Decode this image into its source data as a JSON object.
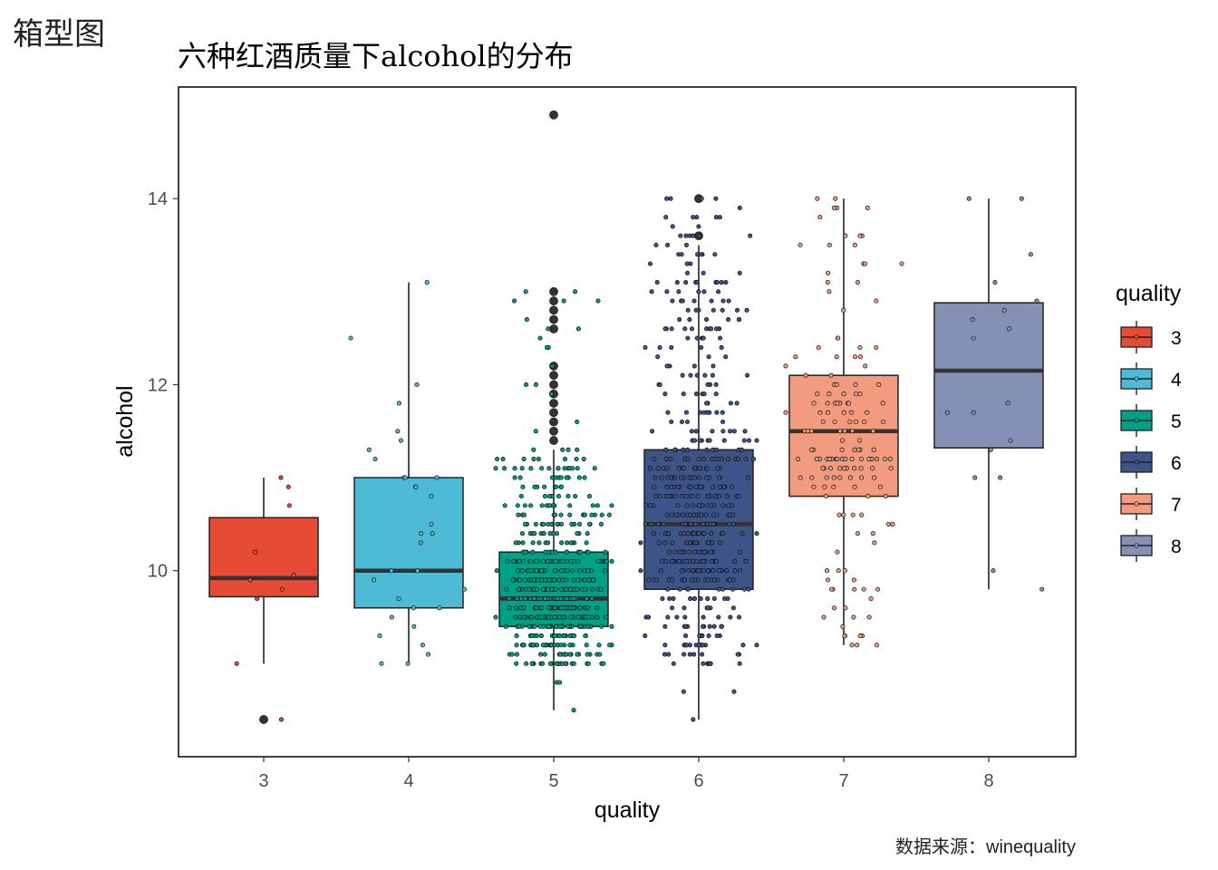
{
  "page": {
    "heading": "箱型图"
  },
  "chart_data": {
    "type": "boxplot",
    "title": "六种红酒质量下alcohol的分布",
    "xlabel": "quality",
    "ylabel": "alcohol",
    "caption": "数据来源：winequality",
    "ylim": [
      8.0,
      15.2
    ],
    "yticks": [
      10,
      12,
      14
    ],
    "grid": false,
    "legend": {
      "title": "quality",
      "position": "right"
    },
    "categories": [
      "3",
      "4",
      "5",
      "6",
      "7",
      "8"
    ],
    "colors": [
      "#E64B35",
      "#4DBBD5",
      "#00A087",
      "#3C5488",
      "#F39B7F",
      "#8491B4"
    ],
    "boxes": [
      {
        "category": "3",
        "min": 9.0,
        "q1": 9.72,
        "median": 9.92,
        "q3": 10.57,
        "max": 11.0,
        "outliers": [
          8.4
        ]
      },
      {
        "category": "4",
        "min": 9.0,
        "q1": 9.6,
        "median": 10.0,
        "q3": 11.0,
        "max": 13.1,
        "outliers": []
      },
      {
        "category": "5",
        "min": 8.5,
        "q1": 9.4,
        "median": 9.7,
        "q3": 10.2,
        "max": 11.3,
        "outliers": [
          11.4,
          11.5,
          11.6,
          11.7,
          11.8,
          11.9,
          12.0,
          12.1,
          12.2,
          12.6,
          12.7,
          12.8,
          12.9,
          13.0,
          14.9
        ]
      },
      {
        "category": "6",
        "min": 8.4,
        "q1": 9.8,
        "median": 10.5,
        "q3": 11.3,
        "max": 13.5,
        "outliers": [
          13.6,
          14.0
        ]
      },
      {
        "category": "7",
        "min": 9.2,
        "q1": 10.8,
        "median": 11.5,
        "q3": 12.1,
        "max": 14.0,
        "outliers": []
      },
      {
        "category": "8",
        "min": 9.8,
        "q1": 11.32,
        "median": 12.15,
        "q3": 12.88,
        "max": 14.0,
        "outliers": []
      }
    ],
    "points": [
      {
        "category": "3",
        "values": [
          10.9,
          11.0,
          10.7,
          10.2,
          9.95,
          9.9,
          9.8,
          9.7,
          9.0,
          8.4
        ]
      },
      {
        "category": "4",
        "values": [
          13.1,
          12.0,
          11.8,
          11.5,
          11.4,
          11.3,
          11.2,
          11.0,
          11.0,
          11.0,
          10.9,
          10.9,
          10.5,
          10.4,
          10.4,
          10.3,
          10.0,
          10.0,
          9.9,
          9.8,
          9.7,
          9.6,
          9.6,
          9.5,
          9.4,
          9.3,
          9.2,
          9.1,
          9.0,
          9.0,
          12.5,
          10.8
        ]
      },
      {
        "category": "5",
        "values": []
      },
      {
        "category": "6",
        "values": []
      },
      {
        "category": "7",
        "values": []
      },
      {
        "category": "8",
        "values": [
          14.0,
          14.0,
          13.4,
          13.1,
          12.9,
          12.8,
          12.7,
          12.6,
          12.5,
          11.8,
          11.7,
          11.7,
          11.4,
          11.3,
          11.0,
          11.0,
          10.0,
          9.8
        ]
      }
    ]
  }
}
